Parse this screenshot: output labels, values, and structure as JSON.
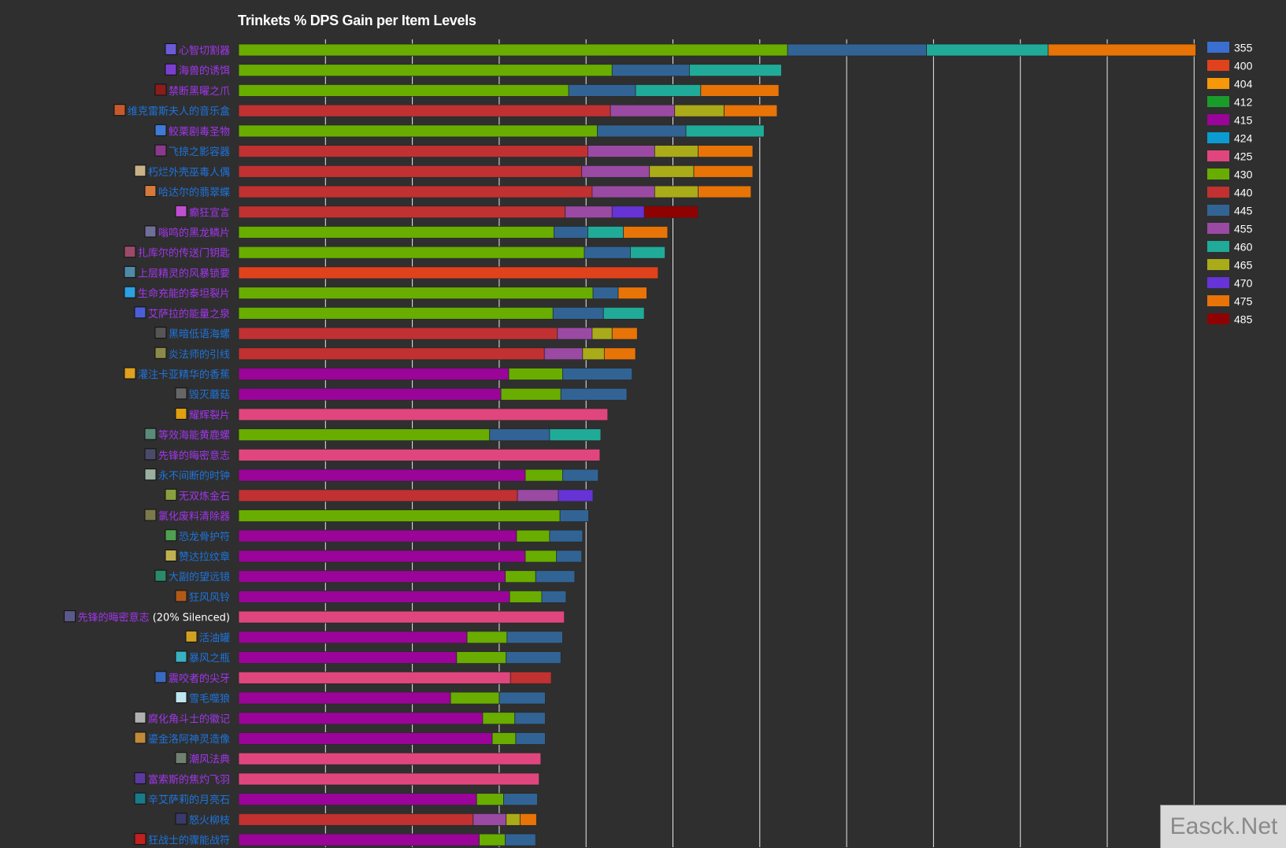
{
  "chart_data": {
    "type": "bar",
    "orientation": "horizontal",
    "stacked": true,
    "stack_mode": "cumulative_end_values",
    "title": "Trinkets % DPS Gain per Item Levels",
    "xlabel": "",
    "ylabel": "",
    "xlim": [
      0,
      11
    ],
    "grid": true,
    "legend_position": "right",
    "legend": [
      {
        "name": "355",
        "color": "#3a6fd1"
      },
      {
        "name": "400",
        "color": "#e0421c"
      },
      {
        "name": "404",
        "color": "#f7980a"
      },
      {
        "name": "412",
        "color": "#1a9c2a"
      },
      {
        "name": "415",
        "color": "#9a0498"
      },
      {
        "name": "424",
        "color": "#0b9bd1"
      },
      {
        "name": "425",
        "color": "#e0467d"
      },
      {
        "name": "430",
        "color": "#68ad00"
      },
      {
        "name": "440",
        "color": "#c13131"
      },
      {
        "name": "445",
        "color": "#316495"
      },
      {
        "name": "455",
        "color": "#9a4aa3"
      },
      {
        "name": "460",
        "color": "#20ab99"
      },
      {
        "name": "465",
        "color": "#aaab18"
      },
      {
        "name": "470",
        "color": "#6533d6"
      },
      {
        "name": "475",
        "color": "#e87306"
      },
      {
        "name": "485",
        "color": "#8f0202"
      }
    ],
    "items": [
      {
        "name": "心智切割器",
        "quality": "epic",
        "segments": [
          {
            "ilvl": "430",
            "value": 6.32
          },
          {
            "ilvl": "445",
            "value": 7.92
          },
          {
            "ilvl": "460",
            "value": 9.32
          },
          {
            "ilvl": "475",
            "value": 11.02
          }
        ]
      },
      {
        "name": "海兽的诱饵",
        "quality": "epic",
        "segments": [
          {
            "ilvl": "430",
            "value": 4.3
          },
          {
            "ilvl": "445",
            "value": 5.19
          },
          {
            "ilvl": "460",
            "value": 6.25
          }
        ]
      },
      {
        "name": "禁断黑曜之爪",
        "quality": "epic",
        "segments": [
          {
            "ilvl": "430",
            "value": 3.8
          },
          {
            "ilvl": "445",
            "value": 4.57
          },
          {
            "ilvl": "460",
            "value": 5.32
          },
          {
            "ilvl": "475",
            "value": 6.22
          }
        ]
      },
      {
        "name": "维克雷斯夫人的音乐盒",
        "quality": "rare",
        "segments": [
          {
            "ilvl": "440",
            "value": 4.28
          },
          {
            "ilvl": "455",
            "value": 5.02
          },
          {
            "ilvl": "465",
            "value": 5.59
          },
          {
            "ilvl": "475",
            "value": 6.2
          }
        ]
      },
      {
        "name": "鲛栗剧毒圣物",
        "quality": "epic",
        "segments": [
          {
            "ilvl": "430",
            "value": 4.13
          },
          {
            "ilvl": "445",
            "value": 5.15
          },
          {
            "ilvl": "460",
            "value": 6.05
          }
        ]
      },
      {
        "name": "飞掠之影容器",
        "quality": "rare",
        "segments": [
          {
            "ilvl": "440",
            "value": 4.02
          },
          {
            "ilvl": "455",
            "value": 4.79
          },
          {
            "ilvl": "465",
            "value": 5.29
          },
          {
            "ilvl": "475",
            "value": 5.92
          }
        ]
      },
      {
        "name": "朽烂外壳巫毒人偶",
        "quality": "rare",
        "segments": [
          {
            "ilvl": "440",
            "value": 3.95
          },
          {
            "ilvl": "455",
            "value": 4.73
          },
          {
            "ilvl": "465",
            "value": 5.24
          },
          {
            "ilvl": "475",
            "value": 5.92
          }
        ]
      },
      {
        "name": "哈达尔的翡翠蝶",
        "quality": "rare",
        "segments": [
          {
            "ilvl": "440",
            "value": 4.07
          },
          {
            "ilvl": "455",
            "value": 4.79
          },
          {
            "ilvl": "465",
            "value": 5.29
          },
          {
            "ilvl": "475",
            "value": 5.9
          }
        ]
      },
      {
        "name": "癫狂宣言",
        "quality": "epic",
        "segments": [
          {
            "ilvl": "440",
            "value": 3.76
          },
          {
            "ilvl": "455",
            "value": 4.3
          },
          {
            "ilvl": "470",
            "value": 4.67
          },
          {
            "ilvl": "485",
            "value": 5.29
          }
        ]
      },
      {
        "name": "嗡鸣的黑龙鳞片",
        "quality": "epic",
        "segments": [
          {
            "ilvl": "430",
            "value": 3.63
          },
          {
            "ilvl": "445",
            "value": 4.02
          },
          {
            "ilvl": "460",
            "value": 4.43
          },
          {
            "ilvl": "475",
            "value": 4.94
          }
        ]
      },
      {
        "name": "扎库尔的传送门钥匙",
        "quality": "epic",
        "segments": [
          {
            "ilvl": "430",
            "value": 3.98
          },
          {
            "ilvl": "445",
            "value": 4.51
          },
          {
            "ilvl": "460",
            "value": 4.91
          }
        ]
      },
      {
        "name": "上层精灵的风暴锁要",
        "quality": "epic",
        "segments": [
          {
            "ilvl": "400",
            "value": 4.83
          }
        ]
      },
      {
        "name": "生命充能的泰坦裂片",
        "quality": "epic",
        "segments": [
          {
            "ilvl": "430",
            "value": 4.08
          },
          {
            "ilvl": "445",
            "value": 4.37
          },
          {
            "ilvl": "475",
            "value": 4.7
          }
        ]
      },
      {
        "name": "艾萨拉的能量之泉",
        "quality": "epic",
        "segments": [
          {
            "ilvl": "430",
            "value": 3.62
          },
          {
            "ilvl": "445",
            "value": 4.2
          },
          {
            "ilvl": "460",
            "value": 4.67
          }
        ]
      },
      {
        "name": "黑暗低语海螺",
        "quality": "rare",
        "segments": [
          {
            "ilvl": "440",
            "value": 3.67
          },
          {
            "ilvl": "455",
            "value": 4.07
          },
          {
            "ilvl": "465",
            "value": 4.3
          },
          {
            "ilvl": "475",
            "value": 4.59
          }
        ]
      },
      {
        "name": "炎法师的引线",
        "quality": "rare",
        "segments": [
          {
            "ilvl": "440",
            "value": 3.52
          },
          {
            "ilvl": "455",
            "value": 3.96
          },
          {
            "ilvl": "465",
            "value": 4.21
          },
          {
            "ilvl": "475",
            "value": 4.57
          }
        ]
      },
      {
        "name": "灌注卡亚精华的香蕉",
        "quality": "rare",
        "segments": [
          {
            "ilvl": "415",
            "value": 3.11
          },
          {
            "ilvl": "430",
            "value": 3.73
          },
          {
            "ilvl": "445",
            "value": 4.53
          }
        ]
      },
      {
        "name": "毁灭蘑菇",
        "quality": "rare",
        "segments": [
          {
            "ilvl": "415",
            "value": 3.02
          },
          {
            "ilvl": "430",
            "value": 3.71
          },
          {
            "ilvl": "445",
            "value": 4.47
          }
        ]
      },
      {
        "name": "耀辉裂片",
        "quality": "epic",
        "segments": [
          {
            "ilvl": "425",
            "value": 4.25
          }
        ]
      },
      {
        "name": "等效海能黄鹿螺",
        "quality": "epic",
        "segments": [
          {
            "ilvl": "430",
            "value": 2.89
          },
          {
            "ilvl": "445",
            "value": 3.58
          },
          {
            "ilvl": "460",
            "value": 4.17
          }
        ]
      },
      {
        "name": "先锋的晦密意志",
        "quality": "epic",
        "segments": [
          {
            "ilvl": "425",
            "value": 4.16
          }
        ]
      },
      {
        "name": "永不间断的时钟",
        "quality": "rare",
        "segments": [
          {
            "ilvl": "415",
            "value": 3.3
          },
          {
            "ilvl": "430",
            "value": 3.73
          },
          {
            "ilvl": "445",
            "value": 4.14
          }
        ]
      },
      {
        "name": "无双炼金石",
        "quality": "epic",
        "segments": [
          {
            "ilvl": "440",
            "value": 3.21
          },
          {
            "ilvl": "455",
            "value": 3.68
          },
          {
            "ilvl": "470",
            "value": 4.08
          }
        ]
      },
      {
        "name": "氯化废料清除器",
        "quality": "epic",
        "segments": [
          {
            "ilvl": "430",
            "value": 3.7
          },
          {
            "ilvl": "445",
            "value": 4.03
          }
        ]
      },
      {
        "name": "恐龙骨护符",
        "quality": "rare",
        "segments": [
          {
            "ilvl": "415",
            "value": 3.2
          },
          {
            "ilvl": "430",
            "value": 3.58
          },
          {
            "ilvl": "445",
            "value": 3.96
          }
        ]
      },
      {
        "name": "赞达拉纹章",
        "quality": "rare",
        "segments": [
          {
            "ilvl": "415",
            "value": 3.3
          },
          {
            "ilvl": "430",
            "value": 3.66
          },
          {
            "ilvl": "445",
            "value": 3.95
          }
        ]
      },
      {
        "name": "大副的望远镜",
        "quality": "rare",
        "segments": [
          {
            "ilvl": "415",
            "value": 3.07
          },
          {
            "ilvl": "430",
            "value": 3.42
          },
          {
            "ilvl": "445",
            "value": 3.87
          }
        ]
      },
      {
        "name": "狂风风铃",
        "quality": "rare",
        "segments": [
          {
            "ilvl": "415",
            "value": 3.12
          },
          {
            "ilvl": "430",
            "value": 3.49
          },
          {
            "ilvl": "445",
            "value": 3.77
          }
        ]
      },
      {
        "name": "先锋的晦密意志",
        "suffix": " (20% Silenced)",
        "quality": "epic",
        "segments": [
          {
            "ilvl": "425",
            "value": 3.75
          }
        ]
      },
      {
        "name": "活油罐",
        "quality": "rare",
        "segments": [
          {
            "ilvl": "415",
            "value": 2.63
          },
          {
            "ilvl": "430",
            "value": 3.09
          },
          {
            "ilvl": "445",
            "value": 3.73
          }
        ]
      },
      {
        "name": "暴风之瓶",
        "quality": "rare",
        "segments": [
          {
            "ilvl": "415",
            "value": 2.51
          },
          {
            "ilvl": "430",
            "value": 3.08
          },
          {
            "ilvl": "445",
            "value": 3.71
          }
        ]
      },
      {
        "name": "震咬者的尖牙",
        "quality": "epic",
        "segments": [
          {
            "ilvl": "425",
            "value": 3.13
          },
          {
            "ilvl": "440",
            "value": 3.6
          }
        ]
      },
      {
        "name": "雪毛噬狼",
        "quality": "rare",
        "segments": [
          {
            "ilvl": "415",
            "value": 2.44
          },
          {
            "ilvl": "430",
            "value": 3.0
          },
          {
            "ilvl": "445",
            "value": 3.53
          }
        ]
      },
      {
        "name": "腐化角斗士的徽记",
        "quality": "epic",
        "segments": [
          {
            "ilvl": "415",
            "value": 2.81
          },
          {
            "ilvl": "430",
            "value": 3.18
          },
          {
            "ilvl": "445",
            "value": 3.53
          }
        ]
      },
      {
        "name": "鎏金洛阿神灵造像",
        "quality": "rare",
        "segments": [
          {
            "ilvl": "415",
            "value": 2.92
          },
          {
            "ilvl": "430",
            "value": 3.19
          },
          {
            "ilvl": "445",
            "value": 3.53
          }
        ]
      },
      {
        "name": "潮风法典",
        "quality": "epic",
        "segments": [
          {
            "ilvl": "425",
            "value": 3.48
          }
        ]
      },
      {
        "name": "富索斯的焦灼飞羽",
        "quality": "epic",
        "segments": [
          {
            "ilvl": "425",
            "value": 3.46
          }
        ]
      },
      {
        "name": "辛艾萨莉的月亮石",
        "quality": "rare",
        "segments": [
          {
            "ilvl": "415",
            "value": 2.74
          },
          {
            "ilvl": "430",
            "value": 3.05
          },
          {
            "ilvl": "445",
            "value": 3.44
          }
        ]
      },
      {
        "name": "怒火柳枝",
        "quality": "rare",
        "segments": [
          {
            "ilvl": "440",
            "value": 2.7
          },
          {
            "ilvl": "455",
            "value": 3.08
          },
          {
            "ilvl": "465",
            "value": 3.24
          },
          {
            "ilvl": "475",
            "value": 3.43
          }
        ]
      },
      {
        "name": "狂战士的骤能战符",
        "quality": "rare",
        "segments": [
          {
            "ilvl": "415",
            "value": 2.77
          },
          {
            "ilvl": "430",
            "value": 3.07
          },
          {
            "ilvl": "445",
            "value": 3.42
          }
        ]
      }
    ]
  },
  "quality_colors": {
    "epic": "#a335ee",
    "rare": "#1e74dd",
    "suffix": "#ffffff"
  },
  "icon_colors": [
    "#6b5bd6",
    "#7a3fd1",
    "#8c1c1c",
    "#c75a2a",
    "#3f7bd6",
    "#8a3a8a",
    "#c7b28a",
    "#d47a3a",
    "#c04fd0",
    "#6f6f9a",
    "#9c4a6a",
    "#4f8aa8",
    "#2ea0e0",
    "#4a5fd6",
    "#555555",
    "#8a8a4a",
    "#e0a020",
    "#666666",
    "#e0a010",
    "#5a8a7a",
    "#4a4a6a",
    "#9ab0a0",
    "#8aa040",
    "#7a7a4a",
    "#50a050",
    "#c0b050",
    "#2a8a6a",
    "#b05a1a",
    "#5a5a8a",
    "#d0a020",
    "#3ab0c0",
    "#3a6ac0",
    "#bfe6f0",
    "#b0b0b0",
    "#c08a3a",
    "#708070",
    "#5a3aa0",
    "#1a7a8a",
    "#3a3a6a",
    "#c02020"
  ],
  "watermark": "Easck.Net"
}
